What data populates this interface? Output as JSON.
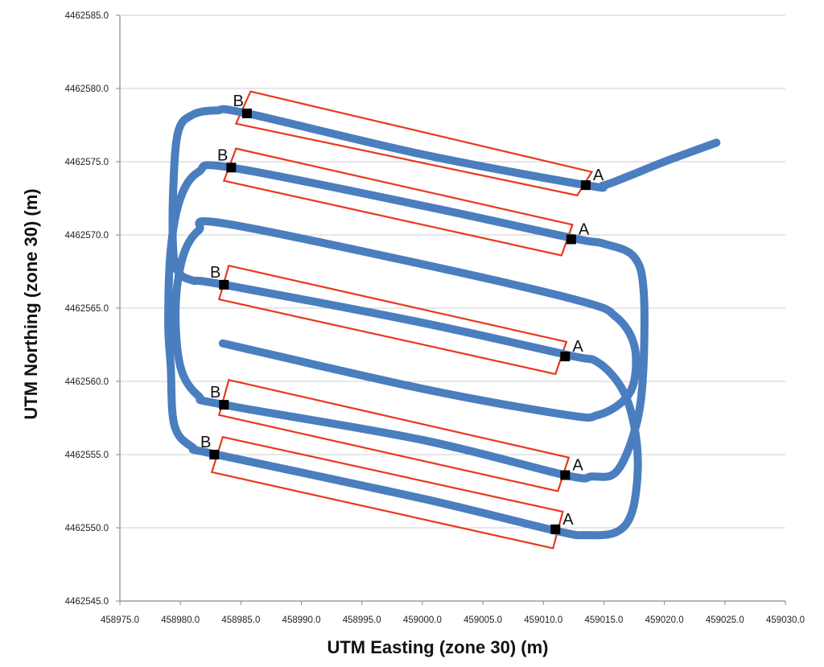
{
  "chart_data": {
    "type": "scatter",
    "title": "",
    "xlabel": "UTM Easting (zone 30) (m)",
    "ylabel": "UTM Northing (zone 30) (m)",
    "xlim": [
      458975.0,
      459030.0
    ],
    "ylim": [
      4462545.0,
      4462585.0
    ],
    "x_ticks": [
      "458975.0",
      "458980.0",
      "458985.0",
      "458990.0",
      "458995.0",
      "459000.0",
      "459005.0",
      "459010.0",
      "459015.0",
      "459020.0",
      "459025.0",
      "459030.0"
    ],
    "y_ticks": [
      "4462545.0",
      "4462550.0",
      "4462555.0",
      "4462560.0",
      "4462565.0",
      "4462570.0",
      "4462575.0",
      "4462580.0",
      "4462585.0"
    ],
    "grid": "horizontal",
    "colors": {
      "track": "#4a7ebf",
      "rectangles": "#e8391c",
      "markers": "#000000"
    },
    "track": [
      [
        459024.3,
        4462576.3
      ],
      [
        459020.0,
        4462575.0
      ],
      [
        459017.0,
        4462574.0
      ],
      [
        459015.0,
        4462573.4
      ],
      [
        459013.5,
        4462573.4
      ],
      [
        459000.0,
        4462575.5
      ],
      [
        458985.5,
        4462578.3
      ],
      [
        458983.0,
        4462578.5
      ],
      [
        458981.0,
        4462578.2
      ],
      [
        458979.8,
        4462577.0
      ],
      [
        458979.4,
        4462573.0
      ],
      [
        458979.4,
        4462569.0
      ],
      [
        458979.8,
        4462567.5
      ],
      [
        458981.0,
        4462566.9
      ],
      [
        458983.6,
        4462566.6
      ],
      [
        459000.0,
        4462564.0
      ],
      [
        459012.0,
        4462561.8
      ],
      [
        459014.5,
        4462561.3
      ],
      [
        459016.5,
        4462559.5
      ],
      [
        459017.5,
        4462557.0
      ],
      [
        459017.8,
        4462554.0
      ],
      [
        459017.3,
        4462551.0
      ],
      [
        459016.0,
        4462549.7
      ],
      [
        459013.5,
        4462549.5
      ],
      [
        459011.0,
        4462549.8
      ],
      [
        459000.0,
        4462552.0
      ],
      [
        458983.0,
        4462555.0
      ],
      [
        458981.0,
        4462555.5
      ],
      [
        458979.5,
        4462557.0
      ],
      [
        458979.2,
        4462561.0
      ],
      [
        458979.0,
        4462564.0
      ],
      [
        458979.2,
        4462569.0
      ],
      [
        458980.0,
        4462572.5
      ],
      [
        458981.5,
        4462574.3
      ],
      [
        458984.2,
        4462574.6
      ],
      [
        459000.0,
        4462572.0
      ],
      [
        459012.3,
        4462569.8
      ],
      [
        459015.0,
        4462569.4
      ],
      [
        459017.5,
        4462568.5
      ],
      [
        459018.3,
        4462566.0
      ],
      [
        459018.2,
        4462560.0
      ],
      [
        459017.5,
        4462556.5
      ],
      [
        459016.0,
        4462553.8
      ],
      [
        459014.0,
        4462553.5
      ],
      [
        459011.8,
        4462553.6
      ],
      [
        459000.0,
        4462556.0
      ],
      [
        458983.6,
        4462558.4
      ],
      [
        458981.5,
        4462559.0
      ],
      [
        458980.0,
        4462561.0
      ],
      [
        458979.6,
        4462565.0
      ],
      [
        458980.2,
        4462568.5
      ],
      [
        458981.5,
        4462570.3
      ],
      [
        458983.5,
        4462570.8
      ],
      [
        459000.0,
        4462568.0
      ],
      [
        459013.0,
        4462565.5
      ],
      [
        459016.0,
        4462564.4
      ],
      [
        459017.5,
        4462562.5
      ],
      [
        459017.5,
        4462560.0
      ],
      [
        459016.5,
        4462558.6
      ],
      [
        459014.5,
        4462557.7
      ],
      [
        459012.0,
        4462557.7
      ],
      [
        459000.0,
        4462559.5
      ],
      [
        458983.5,
        4462562.6
      ]
    ],
    "rectangles": [
      {
        "c1": [
          458985.8,
          4462579.8
        ],
        "c2": [
          459014.0,
          4462574.3
        ],
        "c3": [
          459012.8,
          4462572.7
        ],
        "c4": [
          458984.6,
          4462577.6
        ]
      },
      {
        "c1": [
          458984.6,
          4462575.9
        ],
        "c2": [
          459012.4,
          4462570.7
        ],
        "c3": [
          459011.5,
          4462568.6
        ],
        "c4": [
          458983.6,
          4462573.7
        ]
      },
      {
        "c1": [
          458984.0,
          4462567.9
        ],
        "c2": [
          459011.9,
          4462562.7
        ],
        "c3": [
          459011.0,
          4462560.5
        ],
        "c4": [
          458983.2,
          4462565.6
        ]
      },
      {
        "c1": [
          458984.0,
          4462560.1
        ],
        "c2": [
          459012.1,
          4462554.8
        ],
        "c3": [
          459011.2,
          4462552.5
        ],
        "c4": [
          458983.2,
          4462557.7
        ]
      },
      {
        "c1": [
          458983.5,
          4462556.2
        ],
        "c2": [
          459011.6,
          4462551.1
        ],
        "c3": [
          459010.8,
          4462548.6
        ],
        "c4": [
          458982.6,
          4462553.8
        ]
      }
    ],
    "markers": [
      {
        "label": "A",
        "x": 459013.5,
        "y": 4462573.4
      },
      {
        "label": "B",
        "x": 458985.5,
        "y": 4462578.3
      },
      {
        "label": "A",
        "x": 459012.3,
        "y": 4462569.7
      },
      {
        "label": "B",
        "x": 458984.2,
        "y": 4462574.6
      },
      {
        "label": "A",
        "x": 459011.8,
        "y": 4462561.7
      },
      {
        "label": "B",
        "x": 458983.6,
        "y": 4462566.6
      },
      {
        "label": "A",
        "x": 459011.8,
        "y": 4462553.6
      },
      {
        "label": "B",
        "x": 458983.6,
        "y": 4462558.4
      },
      {
        "label": "A",
        "x": 459011.0,
        "y": 4462549.9
      },
      {
        "label": "B",
        "x": 458982.8,
        "y": 4462555.0
      }
    ]
  }
}
